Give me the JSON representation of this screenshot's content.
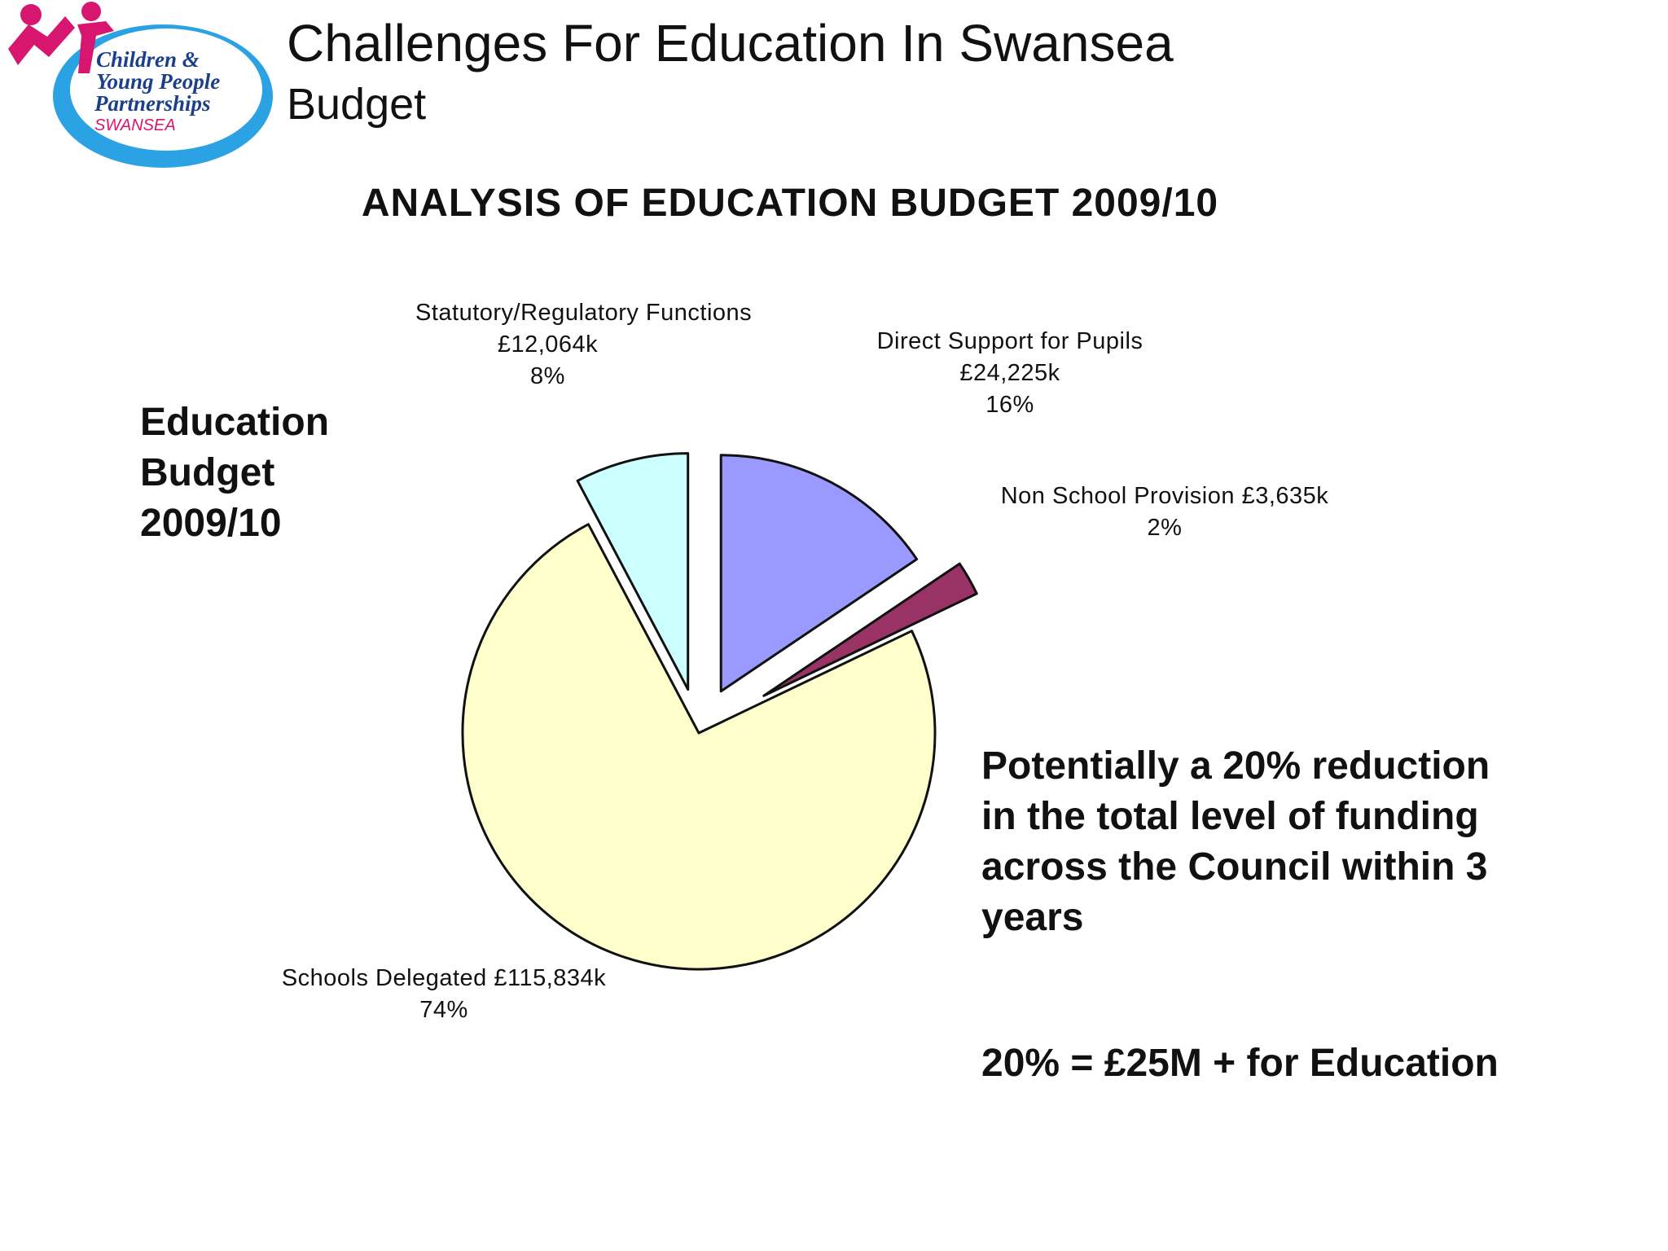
{
  "logo": {
    "line1": "Children &",
    "line2": "Young People",
    "line3": "Partnerships",
    "line4": "SWANSEA"
  },
  "header": {
    "title": "Challenges For Education In Swansea",
    "subtitle": "Budget"
  },
  "side_label": [
    "Education",
    "Budget",
    "2009/10"
  ],
  "note": {
    "lines": [
      "Potentially a 20% reduction",
      "in the total level of funding",
      "across the Council within 3",
      "years"
    ],
    "equation": "20% = £25M + for Education"
  },
  "chart_data": {
    "type": "pie",
    "title": "ANALYSIS OF EDUCATION BUDGET 2009/10",
    "exploded": true,
    "slices": [
      {
        "name": "Direct Support for Pupils",
        "amount_label": "£24,225k",
        "value": 24225,
        "percent_label": "16%",
        "color": "#9999ff"
      },
      {
        "name": "Non School Provision",
        "amount_label": "£3,635k",
        "value": 3635,
        "percent_label": "2%",
        "color": "#993366"
      },
      {
        "name": "Schools Delegated",
        "amount_label": "£115,834k",
        "value": 115834,
        "percent_label": "74%",
        "color": "#ffffcc"
      },
      {
        "name": "Statutory/Regulatory Functions",
        "amount_label": "£12,064k",
        "value": 12064,
        "percent_label": "8%",
        "color": "#ccffff"
      }
    ]
  }
}
